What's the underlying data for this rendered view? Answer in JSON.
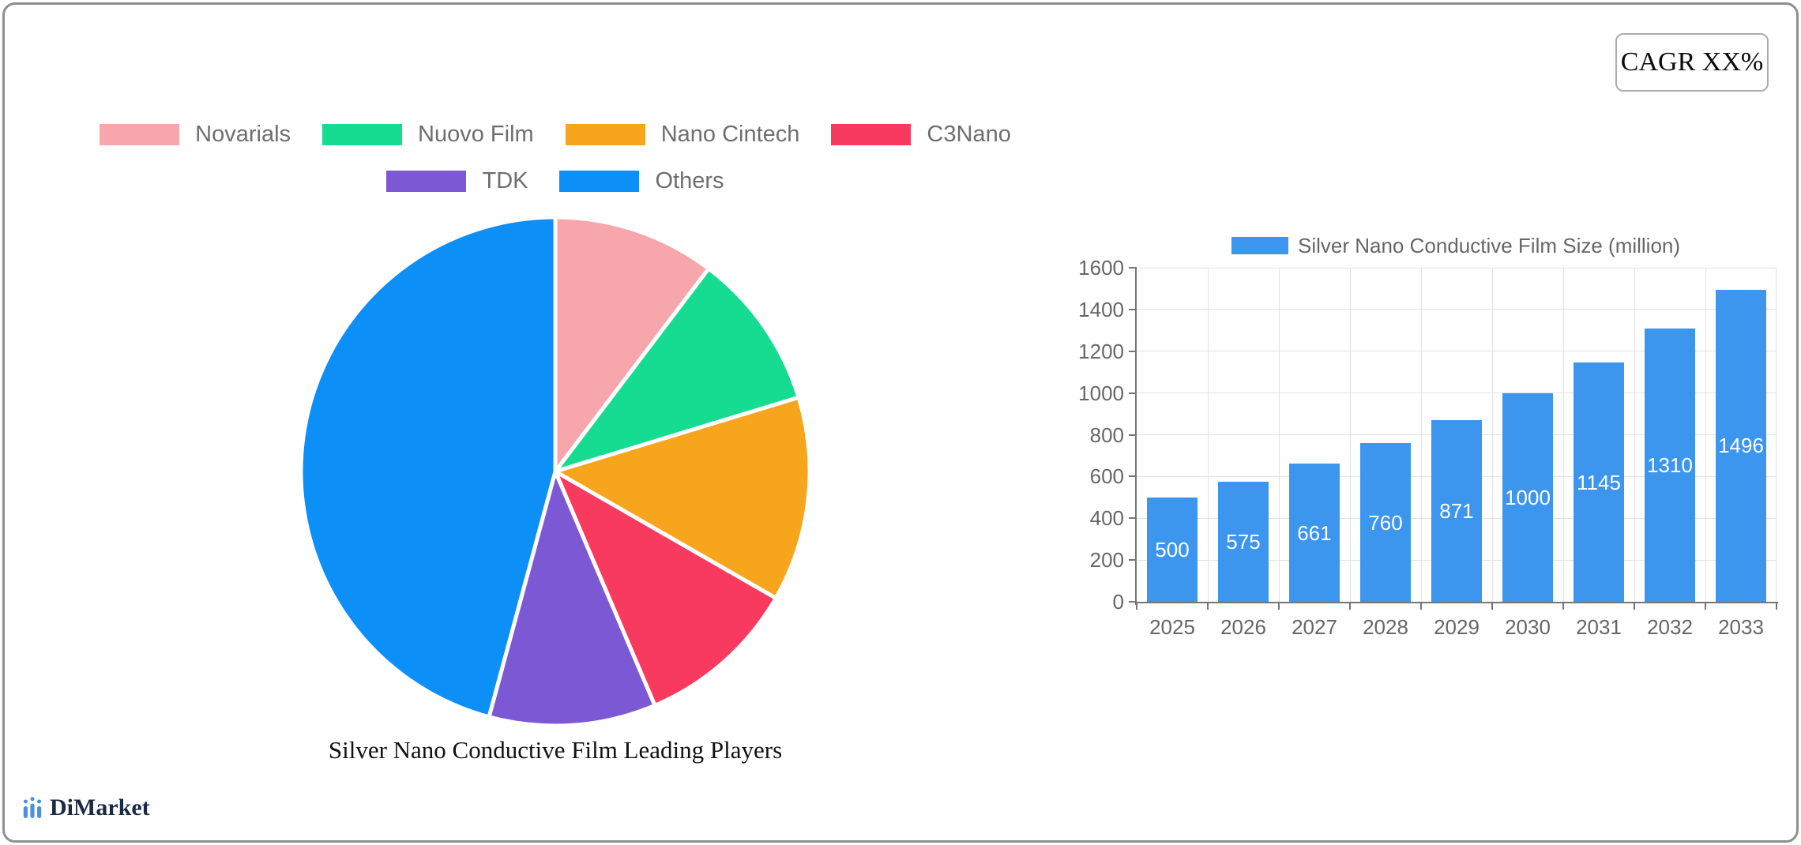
{
  "cagr_box": {
    "label": "CAGR XX%"
  },
  "brand": {
    "name": "DiMarket",
    "icon": "bar-chart-logo-icon"
  },
  "colors": {
    "frame_border": "#8f8f8f",
    "axis_line": "#757575",
    "grid_line": "#e2e2e2",
    "axis_text": "#666666",
    "legend_text": "#6e6e6e",
    "bar_value_text": "#ffffff",
    "brand_text": "#1b2a41",
    "brand_icon": "#4a90e2"
  },
  "chart_data": [
    {
      "type": "pie",
      "title": "Silver Nano Conductive Film Leading Players",
      "legend_position": "top",
      "start_angle_deg": 0,
      "direction": "clockwise",
      "labels": [
        "Novarials",
        "Nuovo Film",
        "Nano Cintech",
        "C3Nano",
        "TDK",
        "Others"
      ],
      "values_percent": [
        10.3,
        10.0,
        13.0,
        10.3,
        10.6,
        45.8
      ],
      "colors": [
        "#f7a6ab",
        "#16dc92",
        "#f8a51e",
        "#f93a5f",
        "#7c58d4",
        "#0d8ff8"
      ]
    },
    {
      "type": "bar",
      "legend": "Silver Nano Conductive Film Size (million)",
      "categories": [
        "2025",
        "2026",
        "2027",
        "2028",
        "2029",
        "2030",
        "2031",
        "2032",
        "2033"
      ],
      "values": [
        500,
        575,
        661,
        760,
        871,
        1000,
        1145,
        1310,
        1496
      ],
      "bar_color": "#3d96ee",
      "value_labels_inside_bars": true,
      "ylim": [
        0,
        1600
      ],
      "y_tick_step": 200,
      "grid": true,
      "legend_position": "top"
    }
  ]
}
